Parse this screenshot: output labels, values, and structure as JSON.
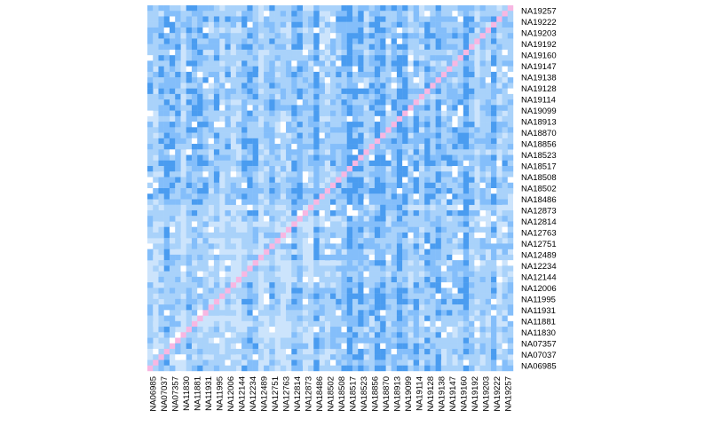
{
  "chart_data": {
    "type": "heatmap",
    "title": "",
    "xlabel": "",
    "ylabel": "",
    "grid": false,
    "legend": "none",
    "samples": [
      "NA06985",
      "NA07037",
      "NA07357",
      "NA11830",
      "NA11881",
      "NA11931",
      "NA11995",
      "NA12006",
      "NA12144",
      "NA12234",
      "NA12489",
      "NA12751",
      "NA12763",
      "NA12814",
      "NA12873",
      "NA18486",
      "NA18502",
      "NA18508",
      "NA18517",
      "NA18523",
      "NA18856",
      "NA18870",
      "NA18913",
      "NA19099",
      "NA19114",
      "NA19128",
      "NA19138",
      "NA19147",
      "NA19160",
      "NA19192",
      "NA19203",
      "NA19222",
      "NA19257"
    ],
    "x_tick_labels": [
      "NA06985",
      "NA07037",
      "NA07357",
      "NA11830",
      "NA11881",
      "NA11931",
      "NA11995",
      "NA12006",
      "NA12144",
      "NA12234",
      "NA12489",
      "NA12751",
      "NA12763",
      "NA12814",
      "NA12873",
      "NA18486",
      "NA18502",
      "NA18508",
      "NA18517",
      "NA18523",
      "NA18856",
      "NA18870",
      "NA18913",
      "NA19099",
      "NA19114",
      "NA19128",
      "NA19138",
      "NA19147",
      "NA19160",
      "NA19192",
      "NA19203",
      "NA19222",
      "NA19257"
    ],
    "y_tick_labels": [
      "NA19257",
      "NA19222",
      "NA19203",
      "NA19192",
      "NA19160",
      "NA19147",
      "NA19138",
      "NA19128",
      "NA19114",
      "NA19099",
      "NA18913",
      "NA18870",
      "NA18856",
      "NA18523",
      "NA18517",
      "NA18508",
      "NA18502",
      "NA18486",
      "NA12873",
      "NA12814",
      "NA12763",
      "NA12751",
      "NA12489",
      "NA12234",
      "NA12144",
      "NA12006",
      "NA11995",
      "NA11931",
      "NA11881",
      "NA11830",
      "NA07357",
      "NA07037",
      "NA06985"
    ],
    "cells_per_sample": 2,
    "group_split_index": 15,
    "value_range": [
      0,
      1
    ],
    "levels": [
      0,
      0.33,
      0.66,
      1
    ],
    "colors": {
      "level_0": "#cce4fc",
      "level_1": "#a9d2fa",
      "level_2": "#84befa",
      "level_3": "#4a9cf0",
      "diagonal": "#f7b7e2",
      "background": "#ffffff"
    }
  }
}
